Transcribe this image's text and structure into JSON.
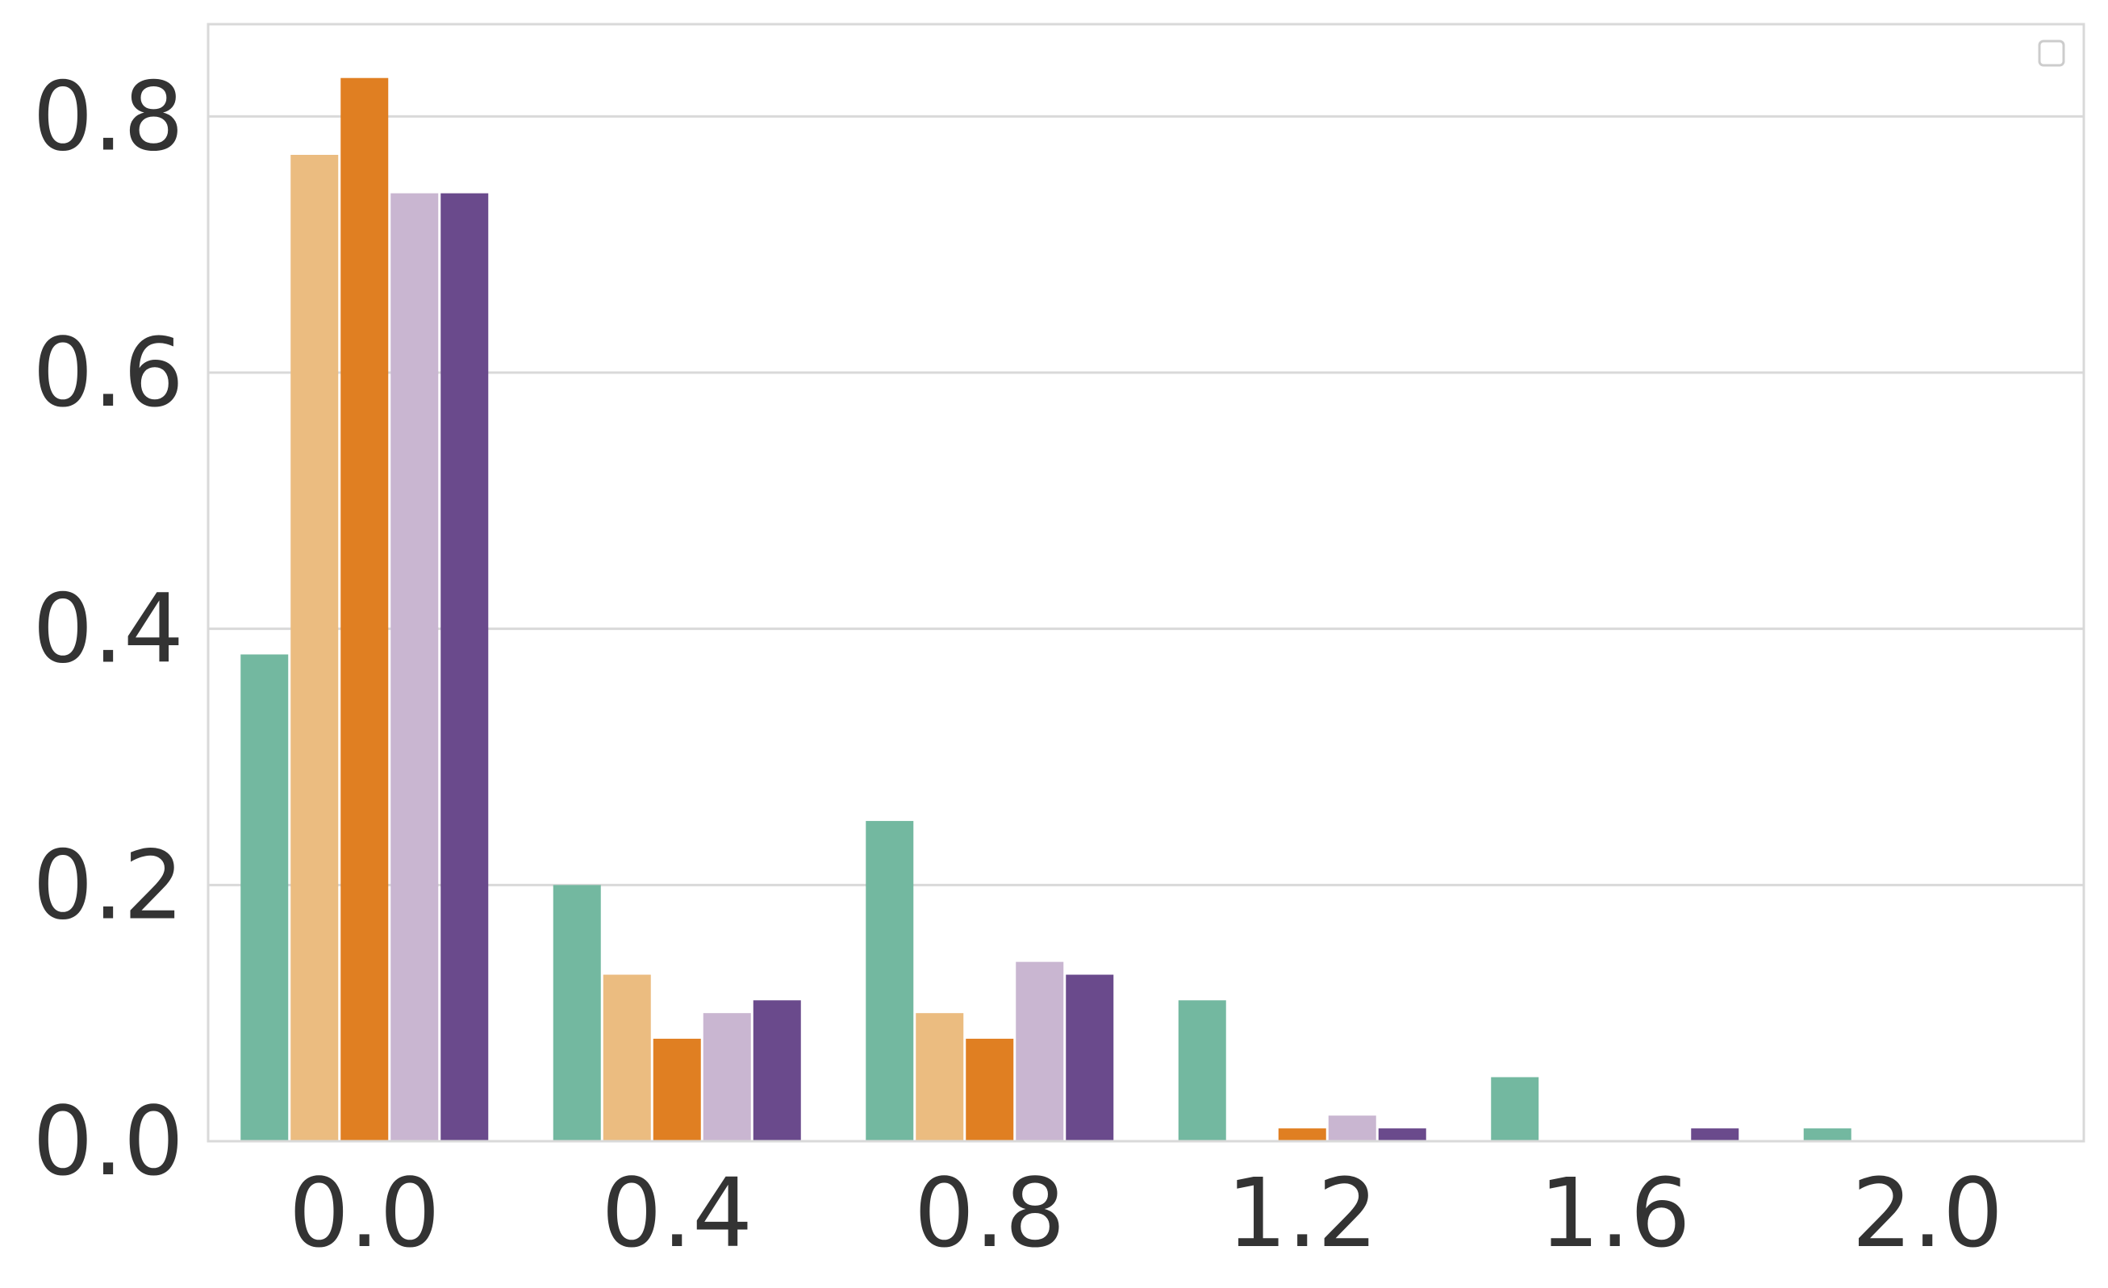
{
  "chart_data": {
    "type": "bar",
    "title": "",
    "xlabel": "",
    "ylabel": "",
    "categories": [
      "0.0",
      "0.4",
      "0.8",
      "1.2",
      "1.6",
      "2.0"
    ],
    "yticks": [
      "0.0",
      "0.2",
      "0.4",
      "0.6",
      "0.8"
    ],
    "ylim": [
      0,
      0.872
    ],
    "grid": true,
    "legend": "top-right (empty)",
    "series": [
      {
        "color": "#73b8a0",
        "values": [
          0.38,
          0.2,
          0.25,
          0.11,
          0.05,
          0.01
        ]
      },
      {
        "color": "#ebbc80",
        "values": [
          0.77,
          0.13,
          0.1,
          0.0,
          0.0,
          0.0
        ]
      },
      {
        "color": "#e07f22",
        "values": [
          0.83,
          0.08,
          0.08,
          0.01,
          0.0,
          0.0
        ]
      },
      {
        "color": "#c9b6d1",
        "values": [
          0.74,
          0.1,
          0.14,
          0.02,
          0.0,
          0.0
        ]
      },
      {
        "color": "#6a4a8c",
        "values": [
          0.74,
          0.11,
          0.13,
          0.01,
          0.01,
          0.0
        ]
      }
    ]
  }
}
